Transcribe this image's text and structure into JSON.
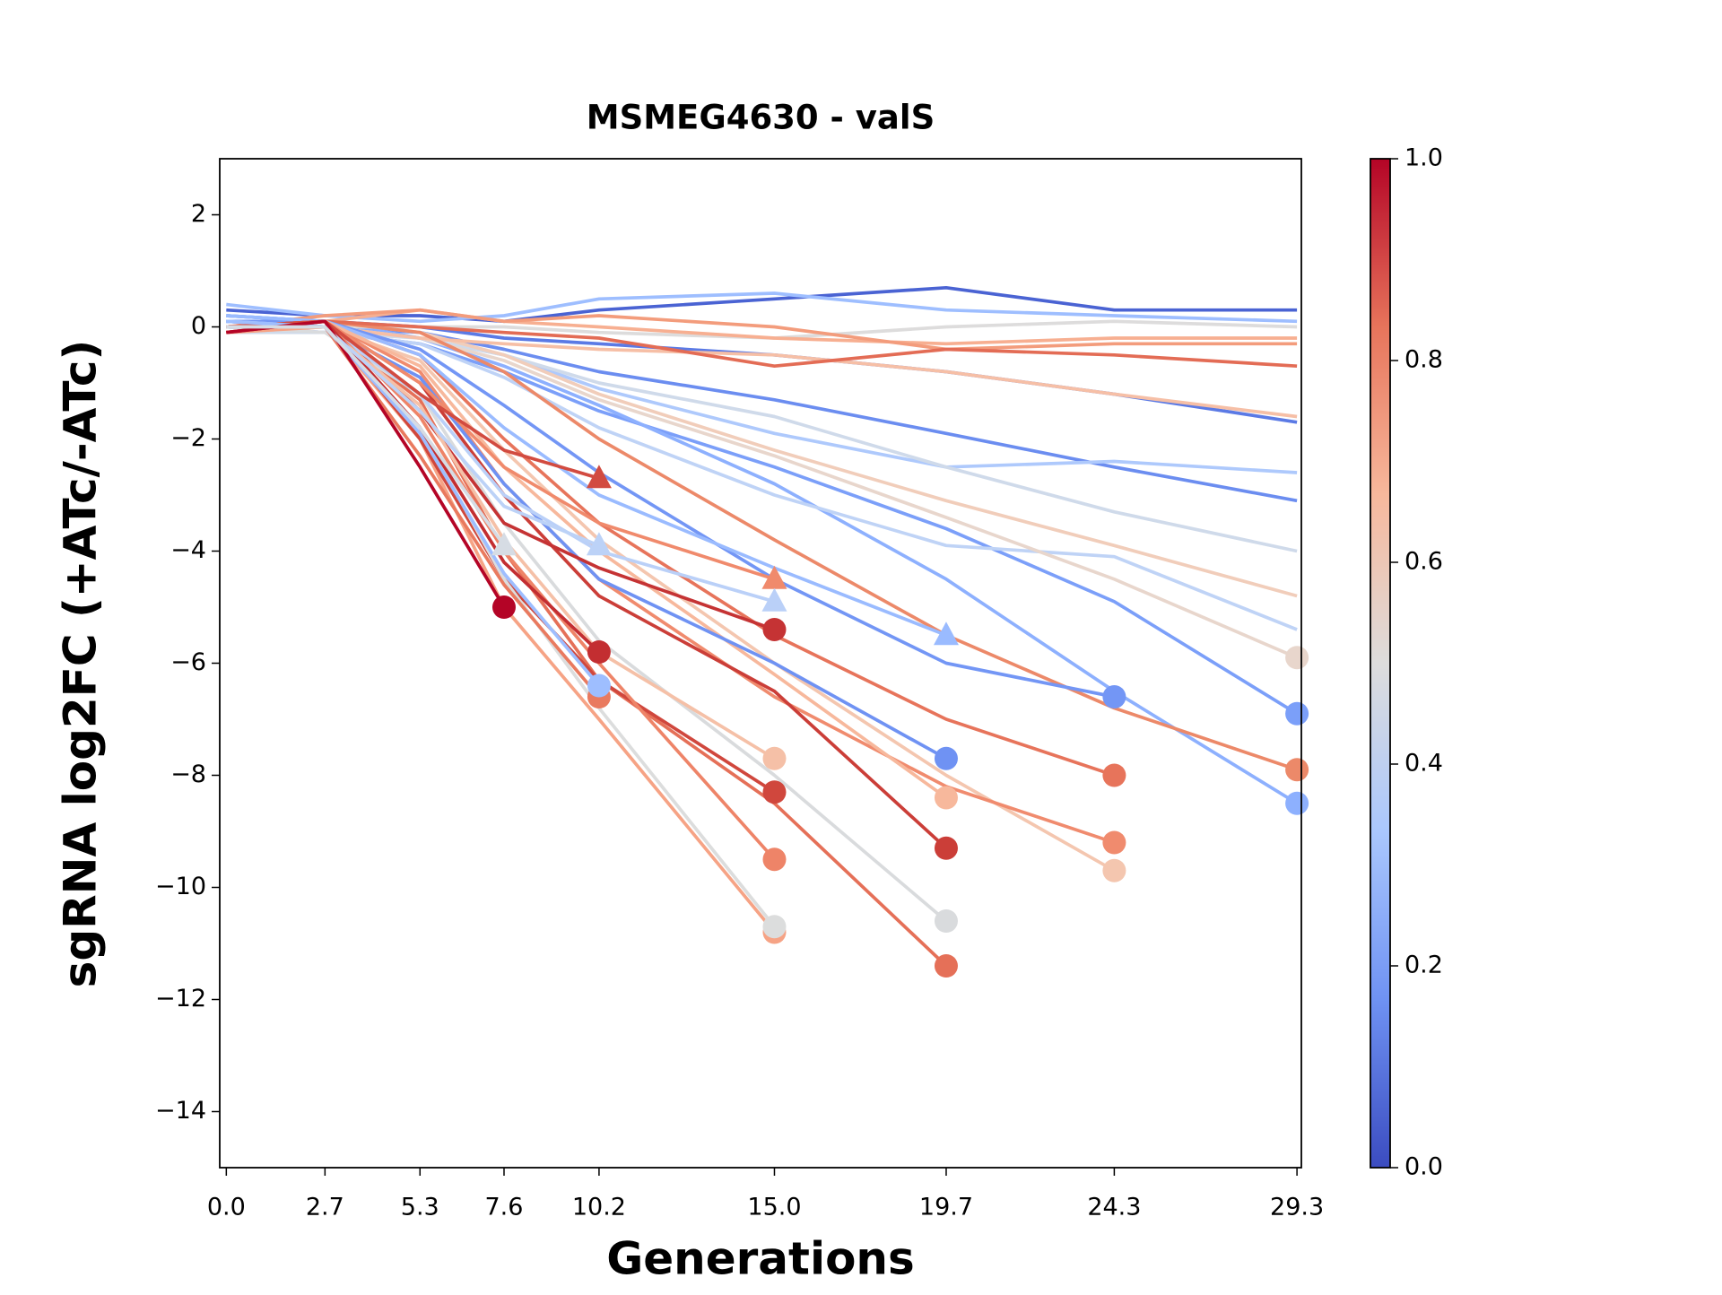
{
  "chart_data": {
    "type": "line",
    "title": "MSMEG4630 - valS",
    "x_label": "Generations",
    "y_label": "sgRNA log2FC (+ATc/-ATc)",
    "x": [
      0,
      2.7,
      5.3,
      7.6,
      10.2,
      15.0,
      19.7,
      24.3,
      29.3
    ],
    "xlim": [
      -0.18,
      29.42
    ],
    "xticks": [
      {
        "value": 0,
        "label": "0.0"
      },
      2.7,
      5.3,
      7.6,
      10.2,
      {
        "value": 15,
        "label": "15.0"
      },
      19.7,
      24.3,
      29.3
    ],
    "ylim": [
      -15,
      3
    ],
    "yticks": [
      {
        "value": -14,
        "label": "−14"
      },
      {
        "value": -12,
        "label": "−12"
      },
      {
        "value": -10,
        "label": "−10"
      },
      {
        "value": -8,
        "label": "−8"
      },
      {
        "value": -6,
        "label": "−6"
      },
      {
        "value": -4,
        "label": "−4"
      },
      {
        "value": -2,
        "label": "−2"
      },
      0,
      2
    ],
    "colorbar": {
      "lim": [
        0,
        1
      ],
      "ticks": [
        {
          "value": 0,
          "label": "0.0"
        },
        {
          "value": 0.2,
          "label": "0.2"
        },
        {
          "value": 0.4,
          "label": "0.4"
        },
        {
          "value": 0.6,
          "label": "0.6"
        },
        {
          "value": 0.8,
          "label": "0.8"
        },
        {
          "value": 1,
          "label": "1.0"
        }
      ],
      "colors": [
        "#3b4cc0",
        "#6f92f3",
        "#aac7fd",
        "#dddcdc",
        "#f7b89c",
        "#e7745b",
        "#b40426"
      ]
    },
    "series": [
      {
        "color": "#4a63d3",
        "marker": "none",
        "values": [
          0.3,
          0.2,
          0.2,
          0.1,
          0.3,
          0.5,
          0.7,
          0.3,
          0.3
        ]
      },
      {
        "color": "#5b7ae5",
        "marker": "none",
        "values": [
          0.2,
          0.1,
          0.0,
          -0.2,
          -0.3,
          -0.5,
          -0.8,
          -1.2,
          -1.7
        ]
      },
      {
        "color": "#6b8df0",
        "marker": "none",
        "values": [
          0.1,
          0.0,
          -0.1,
          -0.4,
          -0.8,
          -1.3,
          -1.9,
          -2.5,
          -3.1
        ]
      },
      {
        "color": "#7b9ff9",
        "marker": "o",
        "values": [
          0.0,
          -0.1,
          -0.3,
          -0.8,
          -1.5,
          -2.5,
          -3.6,
          -4.9,
          -6.9
        ]
      },
      {
        "color": "#8db0fe",
        "marker": "o",
        "values": [
          0.2,
          0.1,
          -0.2,
          -0.7,
          -1.4,
          -2.8,
          -4.5,
          -6.5,
          -8.5
        ]
      },
      {
        "color": "#9ebeff",
        "marker": "none",
        "values": [
          0.4,
          0.2,
          0.1,
          0.2,
          0.5,
          0.6,
          0.3,
          0.2,
          0.1
        ]
      },
      {
        "color": "#aec9fc",
        "marker": "none",
        "values": [
          0.1,
          0.0,
          -0.2,
          -0.5,
          -1.1,
          -1.9,
          -2.5,
          -2.4,
          -2.6
        ]
      },
      {
        "color": "#bfd3f6",
        "marker": "none",
        "values": [
          0.0,
          -0.1,
          -0.3,
          -0.9,
          -1.8,
          -3.0,
          -3.9,
          -4.1,
          -5.4
        ]
      },
      {
        "color": "#cfdaea",
        "marker": "none",
        "values": [
          -0.1,
          -0.1,
          -0.2,
          -0.5,
          -1.0,
          -1.6,
          -2.5,
          -3.3,
          -4.0
        ]
      },
      {
        "color": "#dddcdc",
        "marker": "none",
        "values": [
          0.1,
          0.0,
          0.0,
          0.0,
          -0.1,
          -0.2,
          0.0,
          0.1,
          0.0
        ]
      },
      {
        "color": "#e8d6cc",
        "marker": "o",
        "values": [
          0.0,
          0.0,
          -0.2,
          -0.6,
          -1.3,
          -2.3,
          -3.4,
          -4.5,
          -5.9
        ]
      },
      {
        "color": "#f1cdba",
        "marker": "none",
        "values": [
          0.0,
          0.1,
          -0.1,
          -0.5,
          -1.2,
          -2.2,
          -3.1,
          -3.9,
          -4.8
        ]
      },
      {
        "color": "#f6bfa6",
        "marker": "none",
        "values": [
          -0.1,
          0.0,
          -0.2,
          -0.3,
          -0.4,
          -0.5,
          -0.8,
          -1.2,
          -1.6
        ]
      },
      {
        "color": "#f7af91",
        "marker": "none",
        "values": [
          -0.1,
          0.1,
          0.3,
          0.1,
          0.0,
          -0.2,
          -0.3,
          -0.2,
          -0.2
        ]
      },
      {
        "color": "#f39c7c",
        "marker": "none",
        "values": [
          0.0,
          0.2,
          0.3,
          0.1,
          0.2,
          0.0,
          -0.4,
          -0.3,
          -0.3
        ]
      },
      {
        "color": "#ec8969",
        "marker": "o",
        "values": [
          -0.1,
          0.1,
          -0.1,
          -0.8,
          -2.0,
          -3.8,
          -5.5,
          -6.8,
          -7.9
        ]
      },
      {
        "color": "#e36c55",
        "marker": "none",
        "values": [
          0.0,
          0.1,
          0.0,
          -0.1,
          -0.2,
          -0.7,
          -0.4,
          -0.5,
          -0.7
        ]
      },
      {
        "color": "#e7745b",
        "marker": "o",
        "values": [
          0.0,
          0.1,
          -0.5,
          -2.0,
          -3.5,
          -5.5,
          -7.0,
          -8.0,
          null
        ]
      },
      {
        "color": "#7396f5",
        "marker": "o",
        "values": [
          0.1,
          0.1,
          -0.4,
          -1.4,
          -2.6,
          -4.5,
          -6.0,
          -6.6,
          null
        ]
      },
      {
        "color": "#f4c6af",
        "marker": "o",
        "values": [
          -0.1,
          0.0,
          -0.6,
          -2.2,
          -3.8,
          -6.0,
          -8.0,
          -9.7,
          null
        ]
      },
      {
        "color": "#f08b6e",
        "marker": "o",
        "values": [
          0.0,
          0.1,
          -0.8,
          -2.8,
          -4.5,
          -6.6,
          -8.2,
          -9.2,
          null
        ]
      },
      {
        "color": "#cb3e38",
        "marker": "o",
        "values": [
          0.0,
          0.1,
          -1.0,
          -3.0,
          -4.8,
          -6.5,
          -9.3,
          null,
          null
        ]
      },
      {
        "color": "#9abbff",
        "marker": "^",
        "values": [
          0.2,
          0.1,
          -0.5,
          -1.8,
          -3.0,
          -4.3,
          -5.5,
          null,
          null
        ]
      },
      {
        "color": "#e57058",
        "marker": "o",
        "values": [
          0.0,
          0.0,
          -1.3,
          -4.0,
          -6.3,
          -8.5,
          -11.4,
          null,
          null
        ]
      },
      {
        "color": "#d9dbdd",
        "marker": "o",
        "values": [
          0.0,
          -0.1,
          -1.2,
          -3.5,
          -5.6,
          -8.0,
          -10.6,
          null,
          null
        ]
      },
      {
        "color": "#f7b89c",
        "marker": "o",
        "values": [
          0.0,
          0.1,
          -0.7,
          -2.5,
          -4.0,
          -6.2,
          -8.4,
          null,
          null
        ]
      },
      {
        "color": "#6f92f3",
        "marker": "o",
        "values": [
          0.1,
          0.0,
          -0.9,
          -2.8,
          -4.5,
          -6.0,
          -7.7,
          null,
          null
        ]
      },
      {
        "color": "#c53334",
        "marker": "o",
        "values": [
          0.0,
          0.1,
          -1.5,
          -3.5,
          -4.3,
          -5.4,
          null,
          null,
          null
        ]
      },
      {
        "color": "#f08a6c",
        "marker": "^",
        "values": [
          0.0,
          0.1,
          -1.0,
          -2.5,
          -3.5,
          -4.5,
          null,
          null,
          null
        ]
      },
      {
        "color": "#bad0f8",
        "marker": "^",
        "values": [
          0.1,
          0.0,
          -1.2,
          -3.0,
          -4.0,
          -4.9,
          null,
          null,
          null
        ]
      },
      {
        "color": "#f6a385",
        "marker": "o",
        "values": [
          -0.1,
          0.0,
          -2.0,
          -5.0,
          -7.0,
          -10.8,
          null,
          null,
          null
        ]
      },
      {
        "color": "#d0473d",
        "marker": "o",
        "values": [
          0.0,
          0.1,
          -2.0,
          -4.5,
          -6.3,
          -8.3,
          null,
          null,
          null
        ]
      },
      {
        "color": "#dcdddd",
        "marker": "o",
        "values": [
          0.0,
          0.0,
          -1.8,
          -4.5,
          -6.8,
          -10.7,
          null,
          null,
          null
        ]
      },
      {
        "color": "#ee8468",
        "marker": "o",
        "values": [
          0.0,
          0.1,
          -1.6,
          -4.0,
          -6.0,
          -9.5,
          null,
          null,
          null
        ]
      },
      {
        "color": "#f5c0a7",
        "marker": "o",
        "values": [
          0.0,
          0.0,
          -1.4,
          -3.8,
          -5.8,
          -7.7,
          null,
          null,
          null
        ]
      },
      {
        "color": "#d24b40",
        "marker": "^",
        "values": [
          0.0,
          0.1,
          -1.2,
          -2.2,
          -2.7,
          null,
          null,
          null,
          null
        ]
      },
      {
        "color": "#c32e31",
        "marker": "o",
        "values": [
          -0.1,
          0.1,
          -1.8,
          -4.2,
          -5.8,
          null,
          null,
          null,
          null
        ]
      },
      {
        "color": "#e97a5f",
        "marker": "o",
        "values": [
          0.0,
          0.0,
          -2.3,
          -4.6,
          -6.6,
          null,
          null,
          null,
          null
        ]
      },
      {
        "color": "#bcd2f7",
        "marker": "^",
        "values": [
          0.0,
          0.0,
          -1.5,
          -3.2,
          -3.9,
          null,
          null,
          null,
          null
        ]
      },
      {
        "color": "#9ebeff",
        "marker": "o",
        "values": [
          0.1,
          0.0,
          -1.9,
          -4.4,
          -6.4,
          null,
          null,
          null,
          null
        ]
      },
      {
        "color": "#b40426",
        "marker": "o",
        "values": [
          -0.1,
          0.1,
          -2.5,
          -5.0,
          null,
          null,
          null,
          null,
          null
        ]
      },
      {
        "color": "#d6dce4",
        "marker": "^",
        "values": [
          0.0,
          0.0,
          -1.8,
          -3.9,
          null,
          null,
          null,
          null,
          null
        ]
      }
    ]
  }
}
